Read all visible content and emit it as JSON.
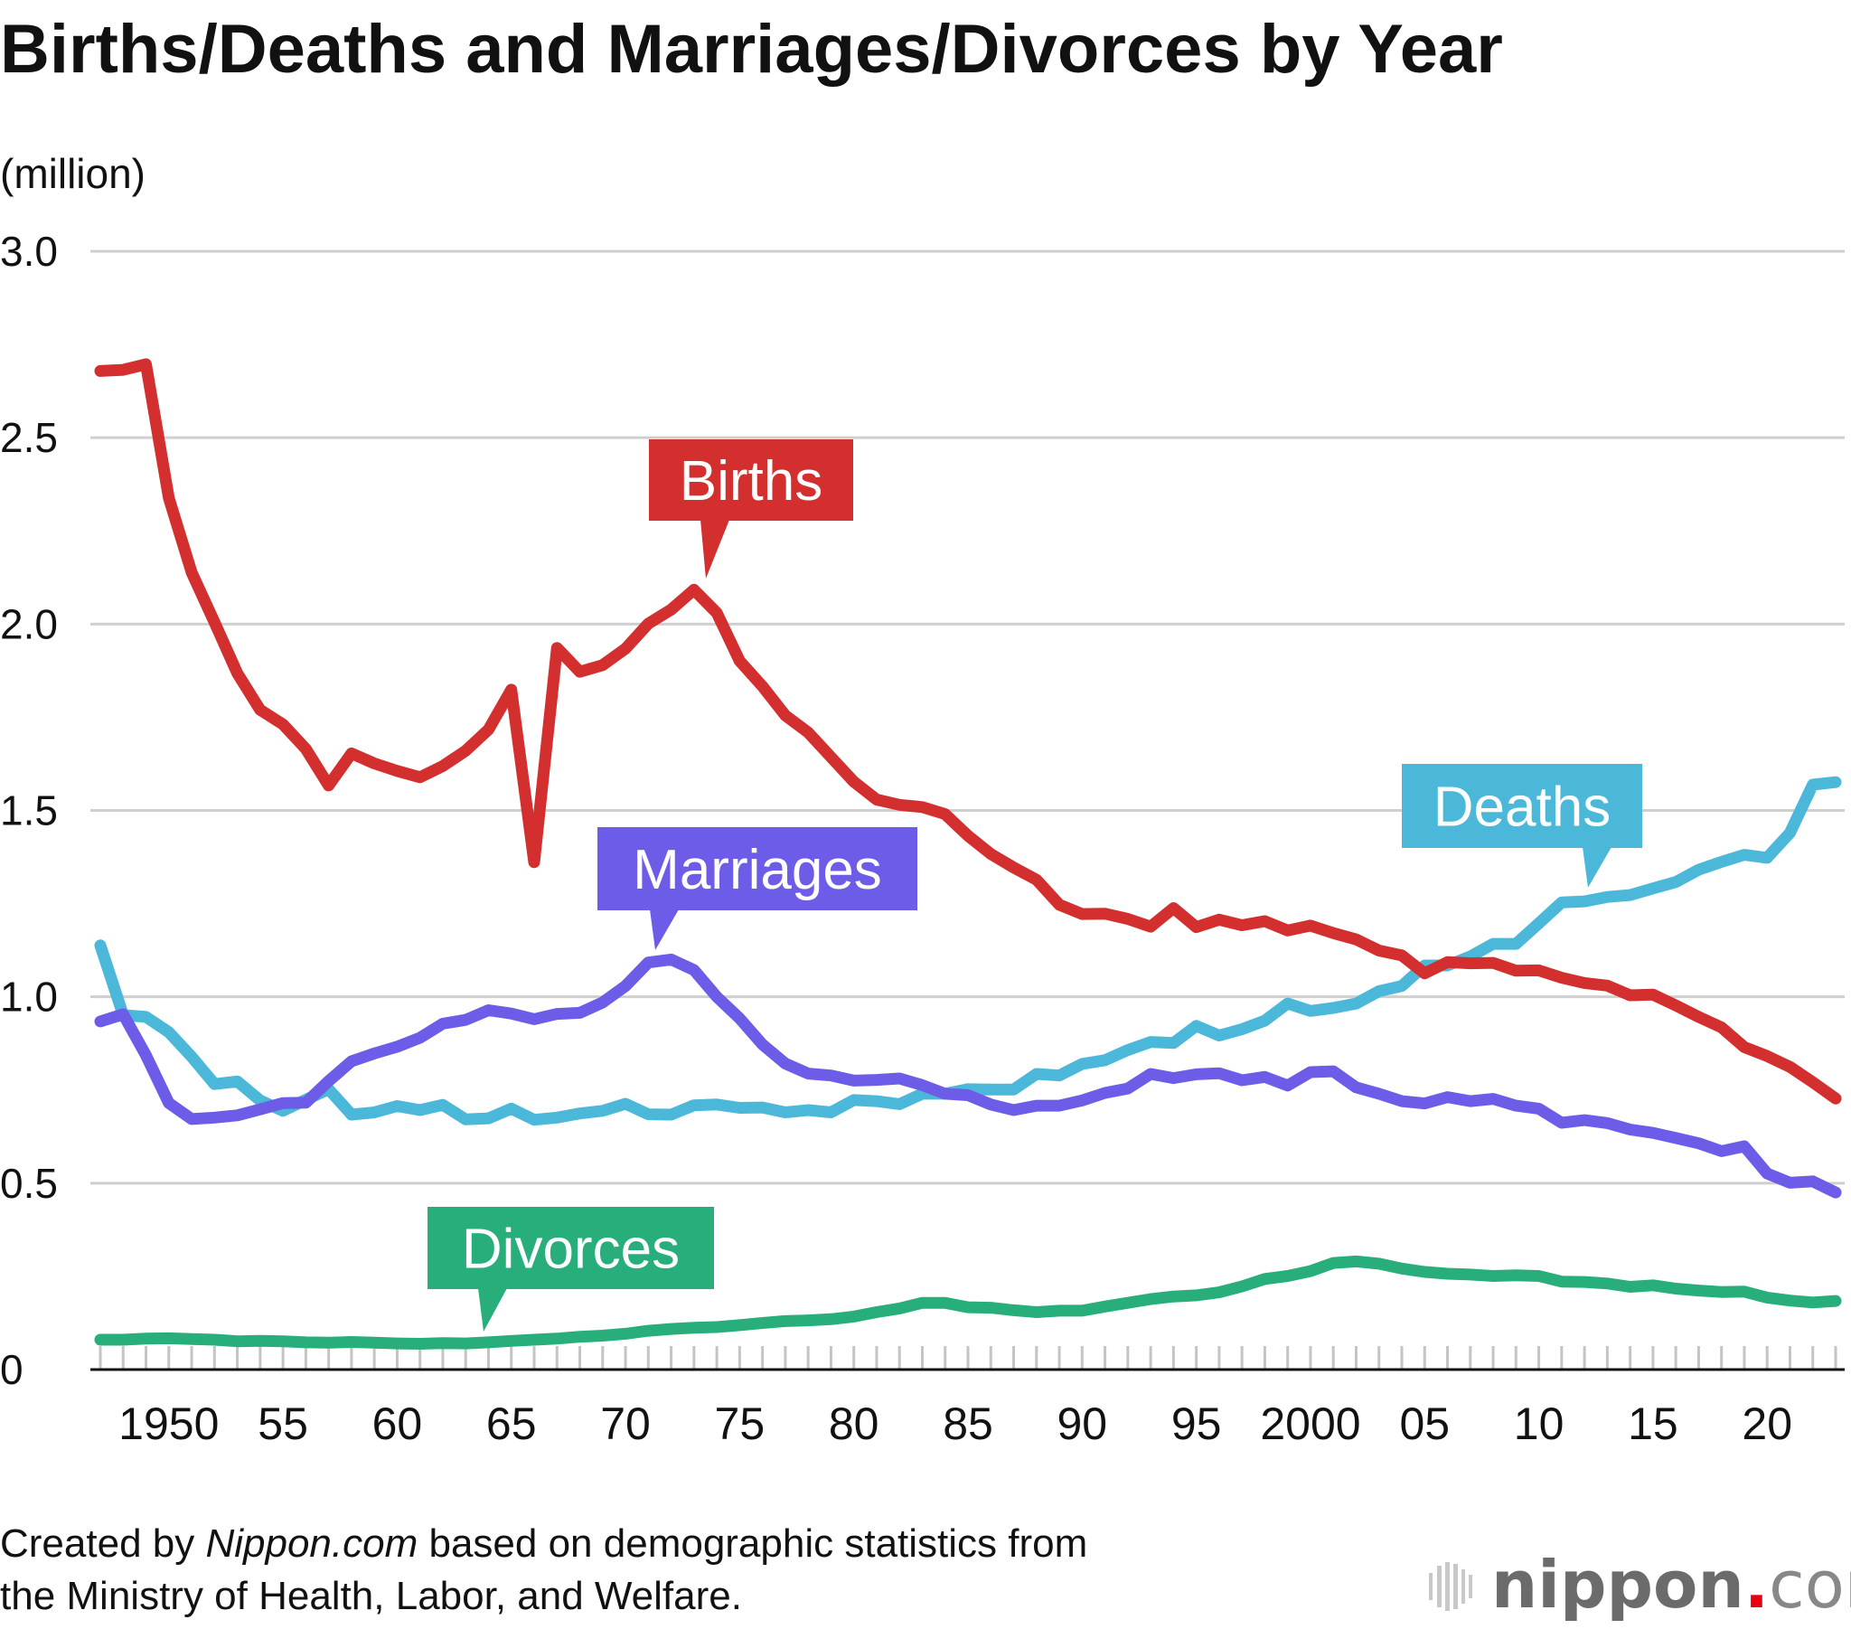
{
  "chart_data": {
    "type": "line",
    "title": "Births/Deaths and Marriages/Divorces by Year",
    "ylabel": "(million)",
    "xlabel": "",
    "ylim": [
      0,
      3.0
    ],
    "xlim": [
      1947,
      2023
    ],
    "grid": true,
    "yticks": [
      {
        "value": 0,
        "label": "0"
      },
      {
        "value": 0.5,
        "label": "0.5"
      },
      {
        "value": 1.0,
        "label": "1.0"
      },
      {
        "value": 1.5,
        "label": "1.5"
      },
      {
        "value": 2.0,
        "label": "2.0"
      },
      {
        "value": 2.5,
        "label": "2.5"
      },
      {
        "value": 3.0,
        "label": "3.0"
      }
    ],
    "xticks": [
      {
        "value": 1950,
        "label": "1950"
      },
      {
        "value": 1955,
        "label": "55"
      },
      {
        "value": 1960,
        "label": "60"
      },
      {
        "value": 1965,
        "label": "65"
      },
      {
        "value": 1970,
        "label": "70"
      },
      {
        "value": 1975,
        "label": "75"
      },
      {
        "value": 1980,
        "label": "80"
      },
      {
        "value": 1985,
        "label": "85"
      },
      {
        "value": 1990,
        "label": "90"
      },
      {
        "value": 1995,
        "label": "95"
      },
      {
        "value": 2000,
        "label": "2000"
      },
      {
        "value": 2005,
        "label": "05"
      },
      {
        "value": 2010,
        "label": "10"
      },
      {
        "value": 2015,
        "label": "15"
      },
      {
        "value": 2020,
        "label": "20"
      }
    ],
    "x_start": 1947,
    "series": [
      {
        "name": "Births",
        "color": "#d42f2f",
        "label_year": 1973,
        "values": [
          2.679,
          2.682,
          2.697,
          2.338,
          2.138,
          2.005,
          1.868,
          1.77,
          1.731,
          1.665,
          1.567,
          1.653,
          1.626,
          1.606,
          1.589,
          1.619,
          1.66,
          1.717,
          1.824,
          1.361,
          1.936,
          1.872,
          1.89,
          1.934,
          2.001,
          2.039,
          2.092,
          2.03,
          1.901,
          1.833,
          1.755,
          1.709,
          1.643,
          1.577,
          1.529,
          1.515,
          1.509,
          1.49,
          1.432,
          1.383,
          1.347,
          1.314,
          1.247,
          1.222,
          1.223,
          1.209,
          1.188,
          1.238,
          1.187,
          1.207,
          1.192,
          1.203,
          1.178,
          1.191,
          1.171,
          1.154,
          1.124,
          1.111,
          1.063,
          1.093,
          1.09,
          1.091,
          1.07,
          1.071,
          1.051,
          1.037,
          1.03,
          1.004,
          1.006,
          0.977,
          0.946,
          0.918,
          0.865,
          0.841,
          0.812,
          0.771,
          0.727
        ]
      },
      {
        "name": "Deaths",
        "color": "#4bb8da",
        "label_year": 2012,
        "values": [
          1.138,
          0.951,
          0.946,
          0.905,
          0.839,
          0.766,
          0.773,
          0.722,
          0.694,
          0.724,
          0.752,
          0.684,
          0.69,
          0.707,
          0.696,
          0.71,
          0.671,
          0.674,
          0.7,
          0.67,
          0.676,
          0.687,
          0.694,
          0.713,
          0.685,
          0.684,
          0.709,
          0.711,
          0.702,
          0.703,
          0.69,
          0.696,
          0.69,
          0.723,
          0.72,
          0.712,
          0.74,
          0.74,
          0.752,
          0.751,
          0.751,
          0.793,
          0.789,
          0.82,
          0.83,
          0.857,
          0.879,
          0.876,
          0.922,
          0.896,
          0.913,
          0.936,
          0.982,
          0.962,
          0.97,
          0.982,
          1.015,
          1.029,
          1.084,
          1.084,
          1.108,
          1.142,
          1.142,
          1.197,
          1.253,
          1.256,
          1.268,
          1.273,
          1.291,
          1.308,
          1.341,
          1.362,
          1.381,
          1.373,
          1.44,
          1.569,
          1.576
        ]
      },
      {
        "name": "Marriages",
        "color": "#6c5ce7",
        "label_year": 1971,
        "values": [
          0.934,
          0.953,
          0.843,
          0.715,
          0.672,
          0.676,
          0.682,
          0.698,
          0.715,
          0.716,
          0.774,
          0.827,
          0.848,
          0.866,
          0.89,
          0.928,
          0.938,
          0.964,
          0.955,
          0.94,
          0.954,
          0.957,
          0.985,
          1.029,
          1.092,
          1.1,
          1.072,
          1.0,
          0.942,
          0.872,
          0.821,
          0.794,
          0.789,
          0.775,
          0.777,
          0.781,
          0.763,
          0.74,
          0.736,
          0.711,
          0.696,
          0.708,
          0.708,
          0.722,
          0.742,
          0.754,
          0.793,
          0.782,
          0.792,
          0.795,
          0.776,
          0.785,
          0.762,
          0.798,
          0.8,
          0.757,
          0.74,
          0.72,
          0.714,
          0.731,
          0.72,
          0.726,
          0.708,
          0.7,
          0.662,
          0.669,
          0.661,
          0.644,
          0.635,
          0.621,
          0.607,
          0.586,
          0.599,
          0.526,
          0.501,
          0.505,
          0.475
        ]
      },
      {
        "name": "Divorces",
        "color": "#27ae7a",
        "label_year": 1964,
        "values": [
          0.08,
          0.08,
          0.083,
          0.084,
          0.082,
          0.08,
          0.076,
          0.077,
          0.076,
          0.073,
          0.072,
          0.074,
          0.072,
          0.07,
          0.069,
          0.071,
          0.07,
          0.073,
          0.077,
          0.08,
          0.083,
          0.088,
          0.091,
          0.096,
          0.104,
          0.109,
          0.112,
          0.114,
          0.119,
          0.125,
          0.13,
          0.132,
          0.135,
          0.142,
          0.154,
          0.164,
          0.179,
          0.179,
          0.167,
          0.166,
          0.159,
          0.154,
          0.158,
          0.158,
          0.169,
          0.179,
          0.189,
          0.196,
          0.199,
          0.207,
          0.223,
          0.243,
          0.251,
          0.264,
          0.286,
          0.29,
          0.284,
          0.271,
          0.262,
          0.257,
          0.255,
          0.251,
          0.253,
          0.251,
          0.236,
          0.235,
          0.231,
          0.222,
          0.226,
          0.217,
          0.212,
          0.208,
          0.209,
          0.193,
          0.185,
          0.18,
          0.184
        ]
      }
    ]
  },
  "footer": {
    "credit_prefix": "Created by ",
    "credit_source": "Nippon.com",
    "credit_suffix": " based on demographic statistics from",
    "credit_line2": "the Ministry of Health, Labor, and Welfare."
  },
  "logo": {
    "text_main": "nippon",
    "text_dot": ".",
    "text_tld": "com",
    "dot_color": "#e60012"
  }
}
